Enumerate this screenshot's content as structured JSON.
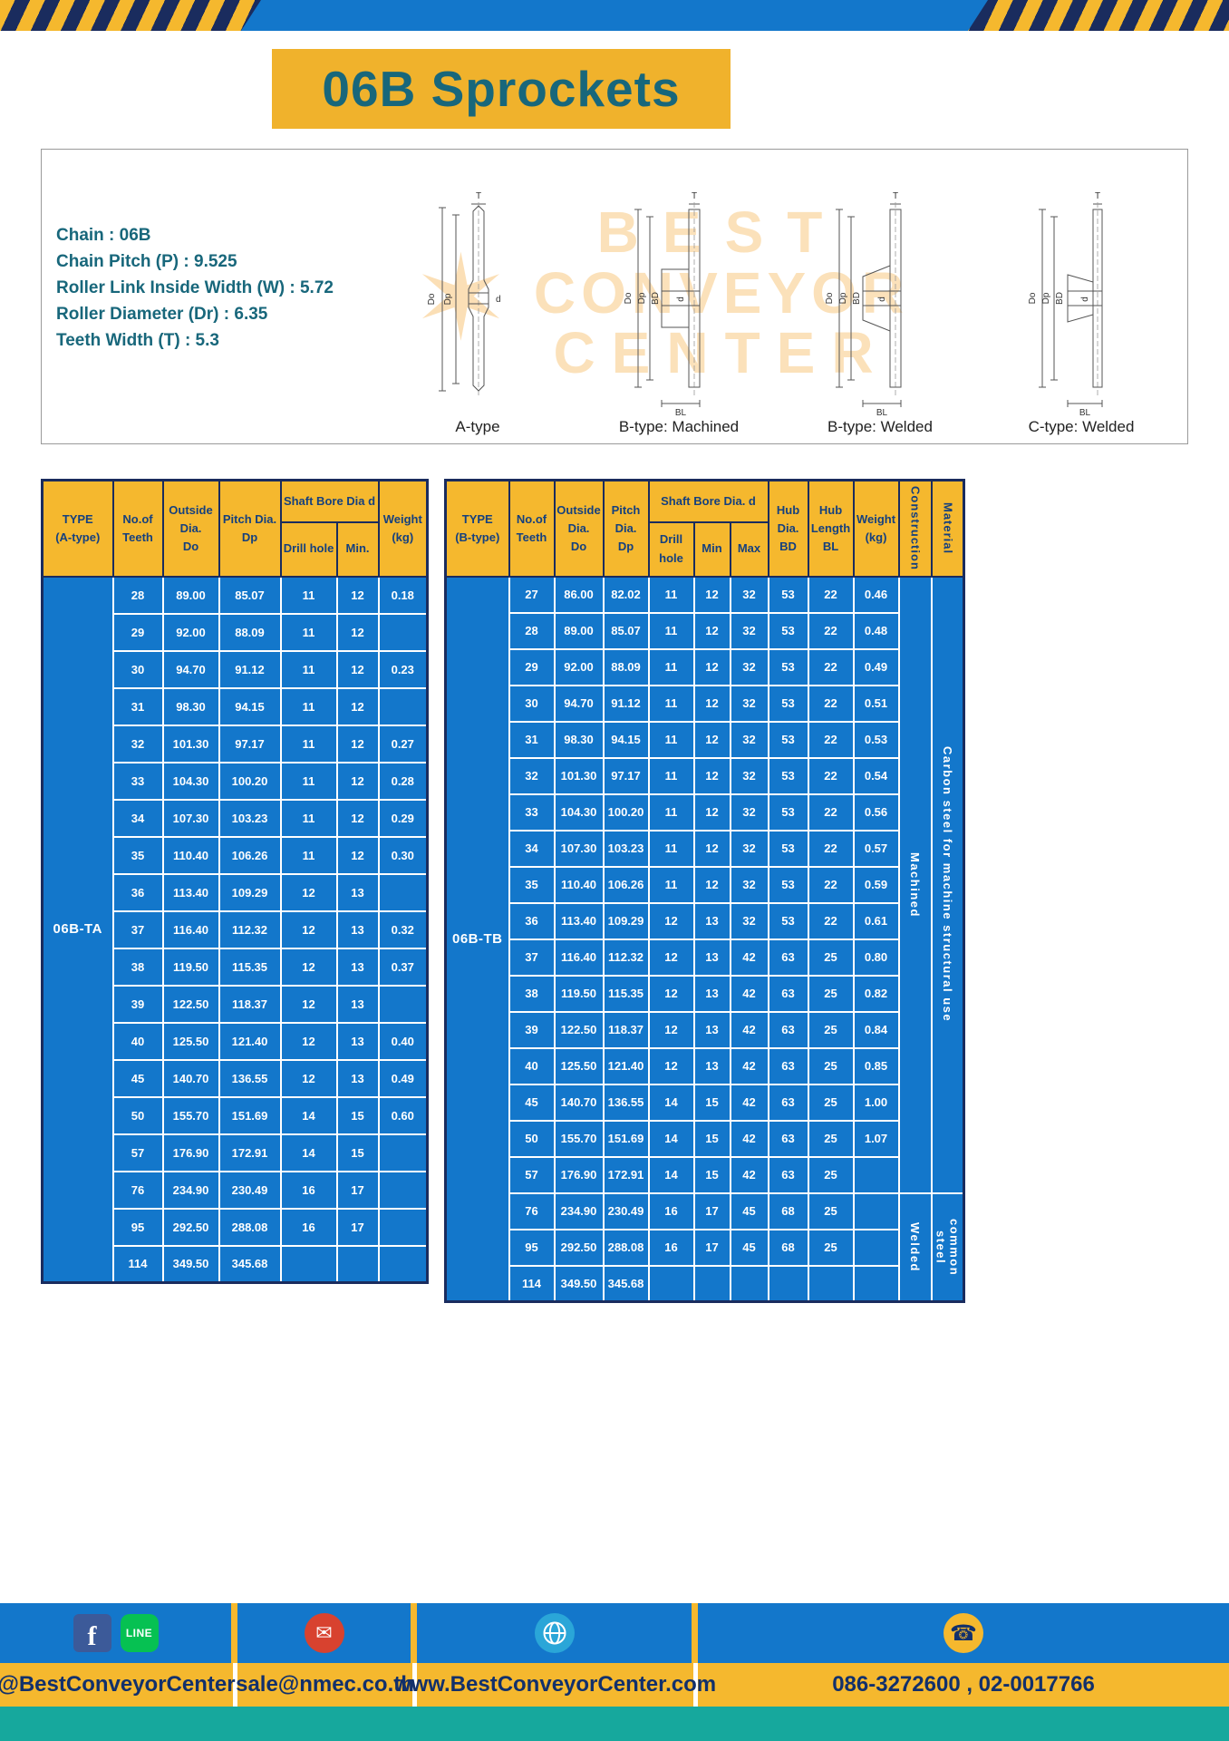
{
  "title": "06B Sprockets",
  "colors": {
    "blue": "#1377cb",
    "yellow": "#f5b82e",
    "navy": "#1a2c5e",
    "teal_text": "#18677b",
    "footer_teal": "#16a89d",
    "header_text": "#15407e",
    "banner_yellow": "#f0b22c"
  },
  "specs": {
    "lines": [
      "Chain : 06B",
      "Chain Pitch (P) : 9.525",
      "Roller Link Inside Width (W) : 5.72",
      "Roller Diameter (Dr) : 6.35",
      "Teeth Width (T) : 5.3"
    ]
  },
  "watermark": {
    "line1": "BEST",
    "line2": "CONVEYOR",
    "line3": "CENTER",
    "star": "✶"
  },
  "drawings": {
    "captions": [
      "A-type",
      "B-type: Machined",
      "B-type: Welded",
      "C-type: Welded"
    ],
    "labels": {
      "t": "T",
      "outer": "Do",
      "pitch": "Dp",
      "bore": "d",
      "hub": "BD",
      "hublen": "BL"
    }
  },
  "table_a": {
    "type_label": "06B-TA",
    "headers": {
      "type": "TYPE\n(A-type)",
      "teeth": "No.of\nTeeth",
      "outside": "Outside\nDia.\nDo",
      "pitch": "Pitch Dia.\nDp",
      "bore_group": "Shaft Bore Dia d",
      "drill": "Drill hole",
      "min": "Min.",
      "weight": "Weight\n(kg)"
    },
    "rows": [
      [
        "28",
        "89.00",
        "85.07",
        "11",
        "12",
        "0.18"
      ],
      [
        "29",
        "92.00",
        "88.09",
        "11",
        "12",
        ""
      ],
      [
        "30",
        "94.70",
        "91.12",
        "11",
        "12",
        "0.23"
      ],
      [
        "31",
        "98.30",
        "94.15",
        "11",
        "12",
        ""
      ],
      [
        "32",
        "101.30",
        "97.17",
        "11",
        "12",
        "0.27"
      ],
      [
        "33",
        "104.30",
        "100.20",
        "11",
        "12",
        "0.28"
      ],
      [
        "34",
        "107.30",
        "103.23",
        "11",
        "12",
        "0.29"
      ],
      [
        "35",
        "110.40",
        "106.26",
        "11",
        "12",
        "0.30"
      ],
      [
        "36",
        "113.40",
        "109.29",
        "12",
        "13",
        ""
      ],
      [
        "37",
        "116.40",
        "112.32",
        "12",
        "13",
        "0.32"
      ],
      [
        "38",
        "119.50",
        "115.35",
        "12",
        "13",
        "0.37"
      ],
      [
        "39",
        "122.50",
        "118.37",
        "12",
        "13",
        ""
      ],
      [
        "40",
        "125.50",
        "121.40",
        "12",
        "13",
        "0.40"
      ],
      [
        "45",
        "140.70",
        "136.55",
        "12",
        "13",
        "0.49"
      ],
      [
        "50",
        "155.70",
        "151.69",
        "14",
        "15",
        "0.60"
      ],
      [
        "57",
        "176.90",
        "172.91",
        "14",
        "15",
        ""
      ],
      [
        "76",
        "234.90",
        "230.49",
        "16",
        "17",
        ""
      ],
      [
        "95",
        "292.50",
        "288.08",
        "16",
        "17",
        ""
      ],
      [
        "114",
        "349.50",
        "345.68",
        "",
        "",
        ""
      ]
    ]
  },
  "table_b": {
    "type_label": "06B-TB",
    "headers": {
      "type": "TYPE\n(B-type)",
      "teeth": "No.of\nTeeth",
      "outside": "Outside\nDia.\nDo",
      "pitch": "Pitch\nDia.\nDp",
      "bore_group": "Shaft Bore Dia. d",
      "drill": "Drill hole",
      "min": "Min",
      "max": "Max",
      "hub_dia": "Hub\nDia.\nBD",
      "hub_len": "Hub\nLength\nBL",
      "weight": "Weight\n(kg)",
      "construction": "Construction",
      "material": "Material"
    },
    "construction": [
      {
        "label": "Machined",
        "span": 17
      },
      {
        "label": "Welded",
        "span": 3
      }
    ],
    "material": [
      {
        "label": "Carbon steel for machine structural use",
        "span": 17
      },
      {
        "label": "common steel",
        "span": 3
      }
    ],
    "rows": [
      [
        "27",
        "86.00",
        "82.02",
        "11",
        "12",
        "32",
        "53",
        "22",
        "0.46"
      ],
      [
        "28",
        "89.00",
        "85.07",
        "11",
        "12",
        "32",
        "53",
        "22",
        "0.48"
      ],
      [
        "29",
        "92.00",
        "88.09",
        "11",
        "12",
        "32",
        "53",
        "22",
        "0.49"
      ],
      [
        "30",
        "94.70",
        "91.12",
        "11",
        "12",
        "32",
        "53",
        "22",
        "0.51"
      ],
      [
        "31",
        "98.30",
        "94.15",
        "11",
        "12",
        "32",
        "53",
        "22",
        "0.53"
      ],
      [
        "32",
        "101.30",
        "97.17",
        "11",
        "12",
        "32",
        "53",
        "22",
        "0.54"
      ],
      [
        "33",
        "104.30",
        "100.20",
        "11",
        "12",
        "32",
        "53",
        "22",
        "0.56"
      ],
      [
        "34",
        "107.30",
        "103.23",
        "11",
        "12",
        "32",
        "53",
        "22",
        "0.57"
      ],
      [
        "35",
        "110.40",
        "106.26",
        "11",
        "12",
        "32",
        "53",
        "22",
        "0.59"
      ],
      [
        "36",
        "113.40",
        "109.29",
        "12",
        "13",
        "32",
        "53",
        "22",
        "0.61"
      ],
      [
        "37",
        "116.40",
        "112.32",
        "12",
        "13",
        "42",
        "63",
        "25",
        "0.80"
      ],
      [
        "38",
        "119.50",
        "115.35",
        "12",
        "13",
        "42",
        "63",
        "25",
        "0.82"
      ],
      [
        "39",
        "122.50",
        "118.37",
        "12",
        "13",
        "42",
        "63",
        "25",
        "0.84"
      ],
      [
        "40",
        "125.50",
        "121.40",
        "12",
        "13",
        "42",
        "63",
        "25",
        "0.85"
      ],
      [
        "45",
        "140.70",
        "136.55",
        "14",
        "15",
        "42",
        "63",
        "25",
        "1.00"
      ],
      [
        "50",
        "155.70",
        "151.69",
        "14",
        "15",
        "42",
        "63",
        "25",
        "1.07"
      ],
      [
        "57",
        "176.90",
        "172.91",
        "14",
        "15",
        "42",
        "63",
        "25",
        ""
      ],
      [
        "76",
        "234.90",
        "230.49",
        "16",
        "17",
        "45",
        "68",
        "25",
        ""
      ],
      [
        "95",
        "292.50",
        "288.08",
        "16",
        "17",
        "45",
        "68",
        "25",
        ""
      ],
      [
        "114",
        "349.50",
        "345.68",
        "",
        "",
        "",
        "",
        "",
        ""
      ]
    ]
  },
  "footer": {
    "glyphs": {
      "facebook": "f",
      "line": "LINE",
      "email": "✉",
      "phone": "☎"
    },
    "items": [
      {
        "icon": "facebook-line",
        "text": "@BestConveyorCenter"
      },
      {
        "icon": "email",
        "text": "sale@nmec.co.th"
      },
      {
        "icon": "globe",
        "text": "www.BestConveyorCenter.com"
      },
      {
        "icon": "phone",
        "text": "086-3272600 , 02-0017766"
      }
    ]
  }
}
